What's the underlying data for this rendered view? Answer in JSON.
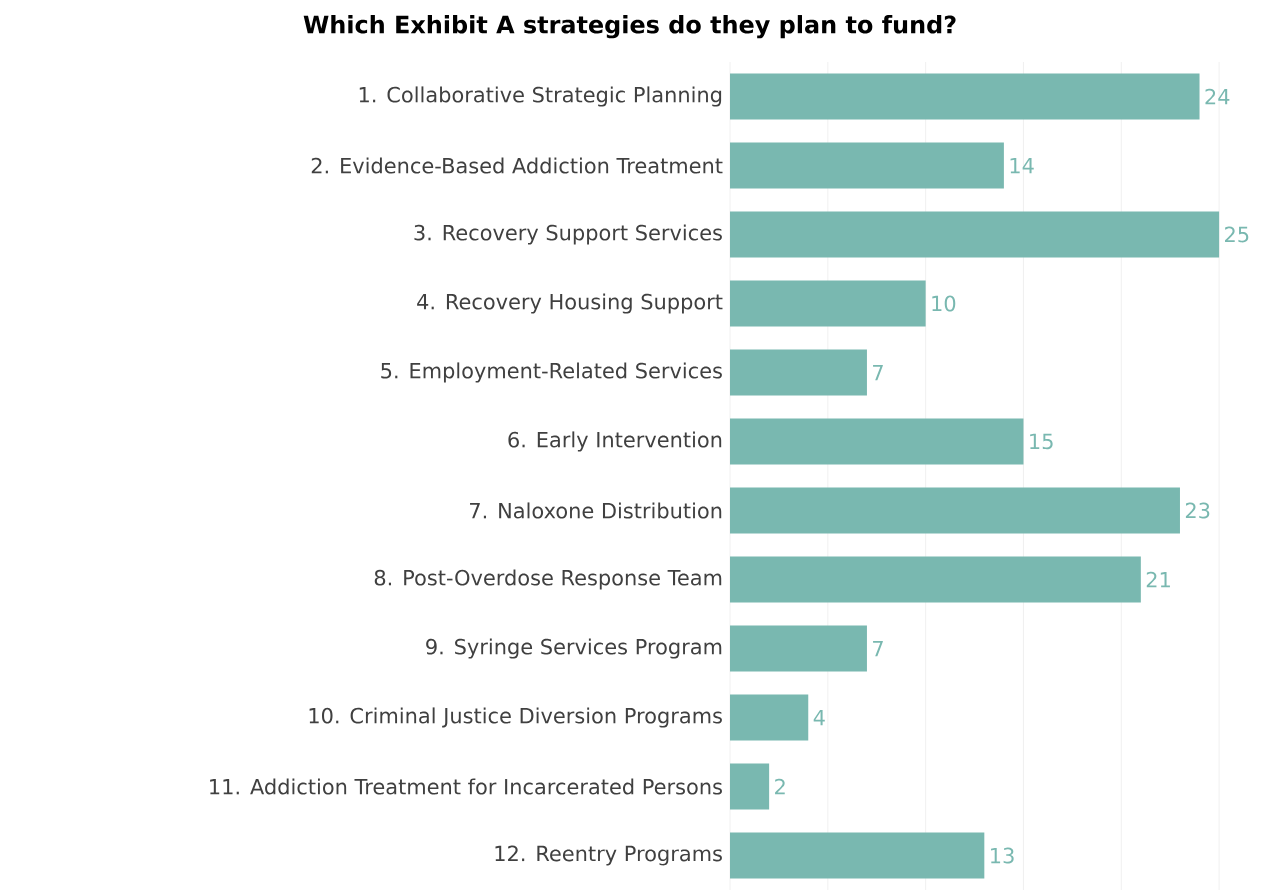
{
  "chart_data": {
    "type": "bar",
    "orientation": "horizontal",
    "title": "Which Exhibit A strategies do they plan to fund?",
    "categories": [
      "1. Collaborative Strategic Planning",
      "2. Evidence-Based Addiction Treatment",
      "3. Recovery Support Services",
      "4. Recovery Housing Support",
      "5. Employment-Related Services",
      "6. Early Intervention",
      "7. Naloxone Distribution",
      "8. Post-Overdose Response Team",
      "9. Syringe Services Program",
      "10. Criminal Justice Diversion Programs",
      "11. Addiction Treatment for Incarcerated Persons",
      "12. Reentry Programs"
    ],
    "values": [
      24,
      14,
      25,
      10,
      7,
      15,
      23,
      21,
      7,
      4,
      2,
      13
    ],
    "color": "#79b8b0",
    "data_labels": true,
    "grid": "x",
    "tick_labels": "y",
    "xticks": [
      {
        "value": 0,
        "label": null
      },
      {
        "value": 5,
        "label": null
      },
      {
        "value": 10,
        "label": null
      },
      {
        "value": 15,
        "label": null
      },
      {
        "value": 20,
        "label": null
      },
      {
        "value": 25,
        "label": null
      }
    ]
  }
}
